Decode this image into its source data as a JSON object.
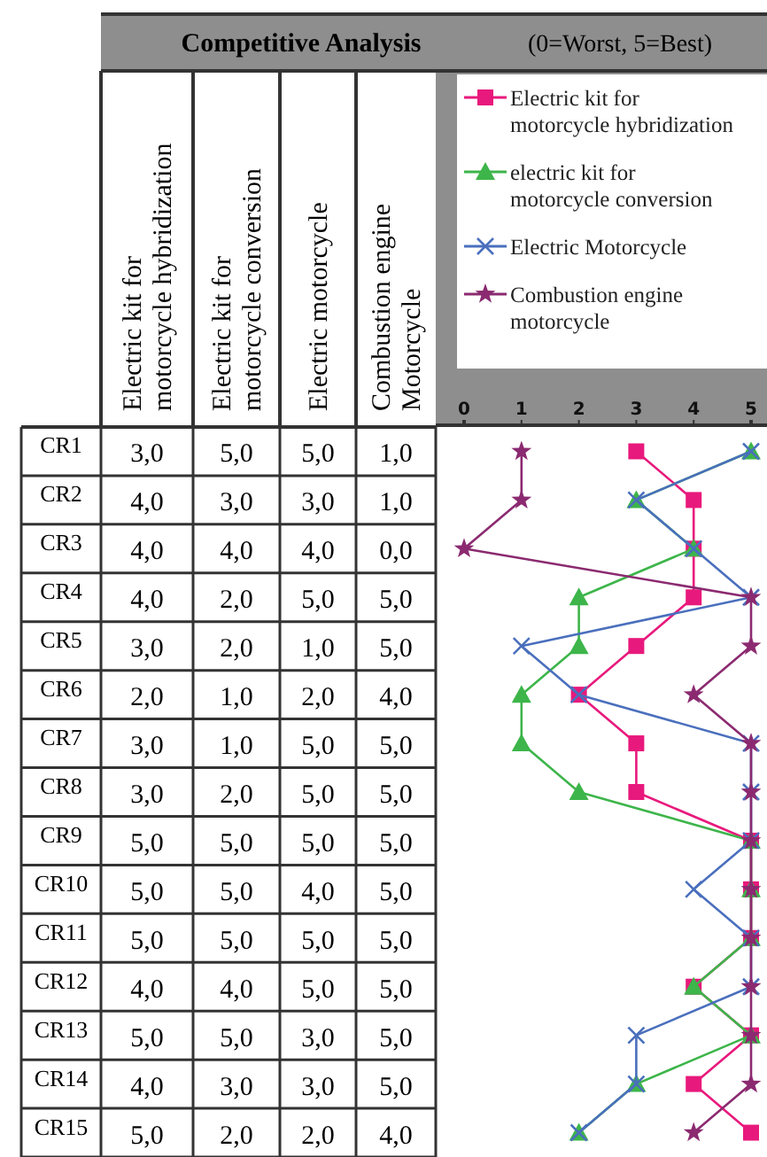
{
  "chart_data": {
    "type": "line",
    "orientation": "horizontal",
    "title": "Competitive Analysis",
    "subtitle": "(0=Worst, 5=Best)",
    "categories": [
      "CR1",
      "CR2",
      "CR3",
      "CR4",
      "CR5",
      "CR6",
      "CR7",
      "CR8",
      "CR9",
      "CR10",
      "CR11",
      "CR12",
      "CR13",
      "CR14",
      "CR15"
    ],
    "annotations": [
      "Electric kit for motorcycle hybridization",
      "Electric kit for motorcycle conversion",
      "Electric motorcycle",
      "Combustion engine Motorcycle"
    ],
    "x2lim": [
      0,
      5
    ],
    "x2ticks": [
      0,
      1,
      2,
      3,
      4,
      5
    ],
    "grid": false,
    "legend": "top right",
    "data_labels": true,
    "series": [
      {
        "name": "Electric kit for motorcycle hybridization",
        "color": "#e8197c",
        "marker": "square",
        "values": [
          3,
          4,
          4,
          4,
          3,
          2,
          3,
          3,
          5,
          5,
          5,
          4,
          5,
          4,
          5
        ],
        "value_labels": [
          "3,0",
          "4,0",
          "4,0",
          "4,0",
          "3,0",
          "2,0",
          "3,0",
          "3,0",
          "5,0",
          "5,0",
          "5,0",
          "4,0",
          "5,0",
          "4,0",
          "5,0"
        ]
      },
      {
        "name": "electric kit for motorcycle conversion",
        "color": "#3db54a",
        "marker": "triangle",
        "values": [
          5,
          3,
          4,
          2,
          2,
          1,
          1,
          2,
          5,
          5,
          5,
          4,
          5,
          3,
          2
        ],
        "value_labels": [
          "5,0",
          "3,0",
          "4,0",
          "2,0",
          "2,0",
          "1,0",
          "1,0",
          "2,0",
          "5,0",
          "5,0",
          "5,0",
          "4,0",
          "5,0",
          "3,0",
          "2,0"
        ]
      },
      {
        "name": "Electric Motorcycle",
        "color": "#4a6fbd",
        "marker": "cross",
        "values": [
          5,
          3,
          4,
          5,
          1,
          2,
          5,
          5,
          5,
          4,
          5,
          5,
          3,
          3,
          2
        ],
        "value_labels": [
          "5,0",
          "3,0",
          "4,0",
          "5,0",
          "1,0",
          "2,0",
          "5,0",
          "5,0",
          "5,0",
          "4,0",
          "5,0",
          "5,0",
          "3,0",
          "3,0",
          "2,0"
        ]
      },
      {
        "name": "Combustion engine motorcycle",
        "color": "#8b2a70",
        "marker": "star",
        "values": [
          1,
          1,
          0,
          5,
          5,
          4,
          5,
          5,
          5,
          5,
          5,
          5,
          5,
          5,
          4
        ],
        "value_labels": [
          "1,0",
          "1,0",
          "0,0",
          "5,0",
          "5,0",
          "4,0",
          "5,0",
          "5,0",
          "5,0",
          "5,0",
          "5,0",
          "5,0",
          "5,0",
          "5,0",
          "4,0"
        ]
      }
    ]
  }
}
